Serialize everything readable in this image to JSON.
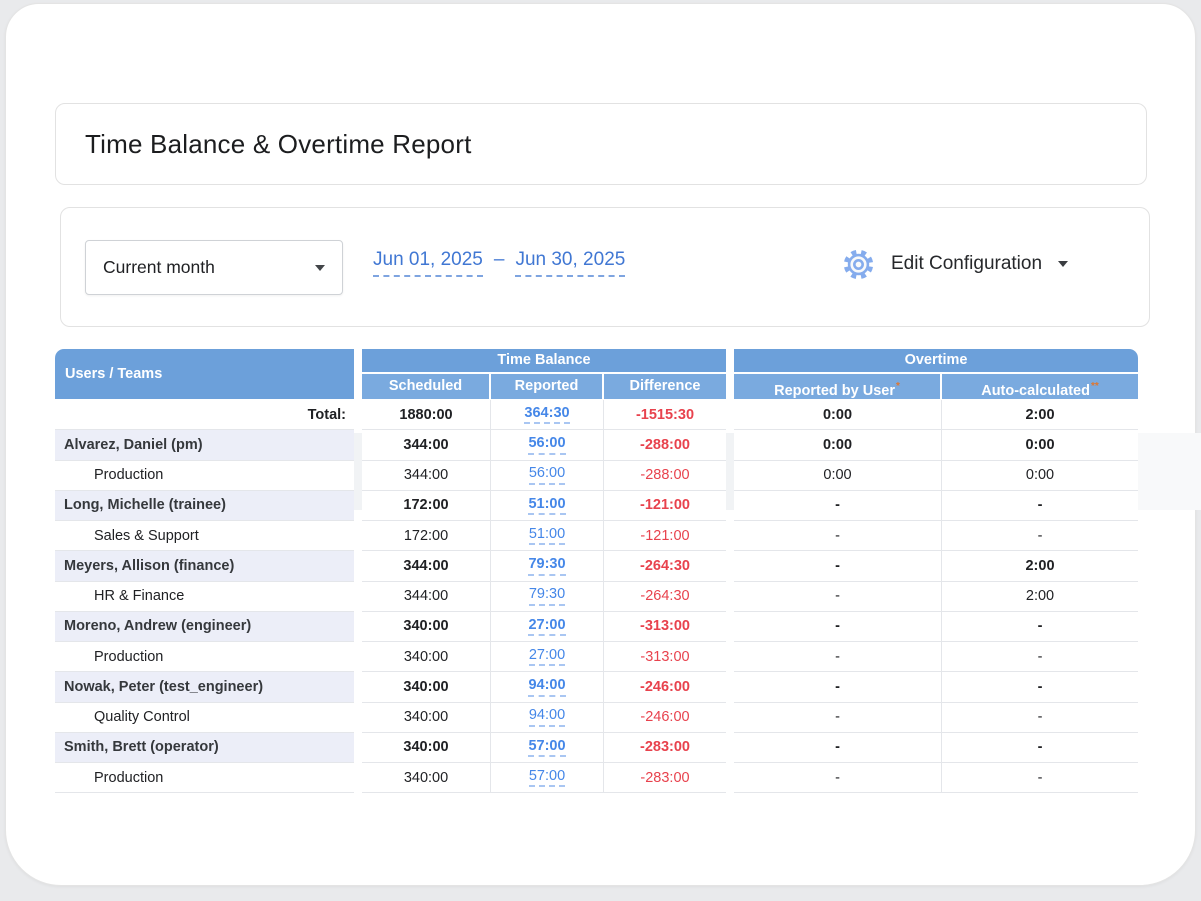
{
  "page": {
    "title": "Time Balance & Overtime Report"
  },
  "filters": {
    "period_value": "Current month",
    "date_start": "Jun 01, 2025",
    "date_separator": "–",
    "date_end": "Jun 30, 2025",
    "edit_config_label": "Edit Configuration",
    "gear_icon": "gear-icon"
  },
  "table": {
    "header": {
      "users_teams": "Users / Teams",
      "time_balance": {
        "group": "Time Balance",
        "sub": [
          "Scheduled",
          "Reported",
          "Difference"
        ]
      },
      "overtime": {
        "group": "Overtime",
        "sub": [
          {
            "label": "Reported by User",
            "marker": "*"
          },
          {
            "label": "Auto-calculated",
            "marker": "**"
          }
        ]
      }
    },
    "rows": [
      {
        "type": "total",
        "label": "Total:",
        "scheduled": "1880:00",
        "reported": "364:30",
        "difference": "-1515:30",
        "ot_user": "0:00",
        "ot_auto": "2:00"
      },
      {
        "type": "user",
        "label": "Alvarez, Daniel (pm)",
        "scheduled": "344:00",
        "reported": "56:00",
        "difference": "-288:00",
        "ot_user": "0:00",
        "ot_auto": "0:00"
      },
      {
        "type": "team",
        "label": "Production",
        "scheduled": "344:00",
        "reported": "56:00",
        "difference": "-288:00",
        "ot_user": "0:00",
        "ot_auto": "0:00"
      },
      {
        "type": "user",
        "label": "Long, Michelle (trainee)",
        "scheduled": "172:00",
        "reported": "51:00",
        "difference": "-121:00",
        "ot_user": "-",
        "ot_auto": "-"
      },
      {
        "type": "team",
        "label": "Sales & Support",
        "scheduled": "172:00",
        "reported": "51:00",
        "difference": "-121:00",
        "ot_user": "-",
        "ot_auto": "-"
      },
      {
        "type": "user",
        "label": "Meyers, Allison (finance)",
        "scheduled": "344:00",
        "reported": "79:30",
        "difference": "-264:30",
        "ot_user": "-",
        "ot_auto": "2:00"
      },
      {
        "type": "team",
        "label": "HR & Finance",
        "scheduled": "344:00",
        "reported": "79:30",
        "difference": "-264:30",
        "ot_user": "-",
        "ot_auto": "2:00"
      },
      {
        "type": "user",
        "label": "Moreno, Andrew (engineer)",
        "scheduled": "340:00",
        "reported": "27:00",
        "difference": "-313:00",
        "ot_user": "-",
        "ot_auto": "-"
      },
      {
        "type": "team",
        "label": "Production",
        "scheduled": "340:00",
        "reported": "27:00",
        "difference": "-313:00",
        "ot_user": "-",
        "ot_auto": "-"
      },
      {
        "type": "user",
        "label": "Nowak, Peter (test_engineer)",
        "scheduled": "340:00",
        "reported": "94:00",
        "difference": "-246:00",
        "ot_user": "-",
        "ot_auto": "-"
      },
      {
        "type": "team",
        "label": "Quality Control",
        "scheduled": "340:00",
        "reported": "94:00",
        "difference": "-246:00",
        "ot_user": "-",
        "ot_auto": "-"
      },
      {
        "type": "user",
        "label": "Smith, Brett (operator)",
        "scheduled": "340:00",
        "reported": "57:00",
        "difference": "-283:00",
        "ot_user": "-",
        "ot_auto": "-"
      },
      {
        "type": "team",
        "label": "Production",
        "scheduled": "340:00",
        "reported": "57:00",
        "difference": "-283:00",
        "ot_user": "-",
        "ot_auto": "-"
      }
    ]
  },
  "colors": {
    "header_blue": "#6CA0DA",
    "subheader_blue": "#7AAADF",
    "link_blue": "#4587E8",
    "date_blue": "#4077d3",
    "negative_red": "#E8424D",
    "user_row_bg": "#ECEEF8",
    "marker_orange": "#e0762f"
  }
}
